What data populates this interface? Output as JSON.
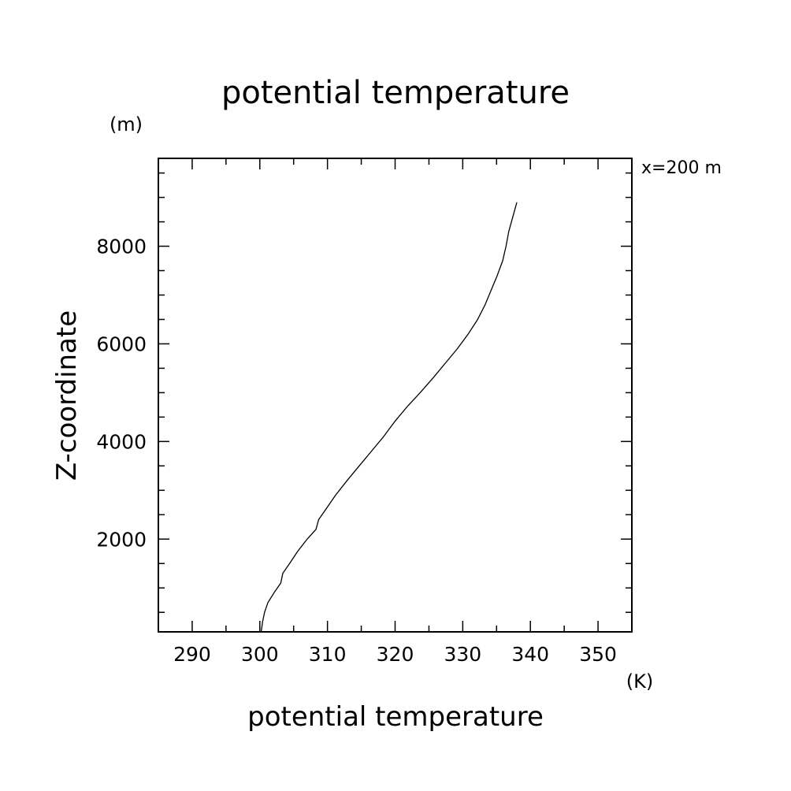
{
  "chart_data": {
    "type": "line",
    "title": "potential temperature",
    "xlabel": "potential temperature",
    "ylabel": "Z-coordinate",
    "x_unit": "(K)",
    "y_unit": "(m)",
    "annotation": "x=200 m",
    "xlim": [
      285,
      355
    ],
    "ylim": [
      100,
      9800
    ],
    "x_ticks": [
      290,
      300,
      310,
      320,
      330,
      340,
      350
    ],
    "x_tick_labels": [
      "290",
      "300",
      "310",
      "320",
      "330",
      "340",
      "350"
    ],
    "x_minor_step": 5,
    "y_ticks": [
      2000,
      4000,
      6000,
      8000
    ],
    "y_tick_labels": [
      "2000",
      "4000",
      "6000",
      "8000"
    ],
    "y_minor_step": 500,
    "grid": false,
    "legend": "none",
    "line_color": "#000000",
    "series": [
      {
        "x": [
          300.2,
          300.4,
          300.7,
          301.2,
          302.1,
          303.1,
          303.4,
          304.4,
          305.6,
          307.0,
          308.3,
          308.7,
          309.7,
          311.2,
          312.9,
          314.7,
          316.5,
          318.3,
          319.9,
          321.7,
          323.7,
          325.6,
          327.4,
          329.2,
          330.8,
          332.2,
          333.3,
          334.2,
          335.1,
          335.9,
          336.4,
          336.8,
          337.4,
          338.0
        ],
        "y": [
          100,
          300,
          500,
          700,
          900,
          1100,
          1300,
          1500,
          1750,
          2000,
          2200,
          2400,
          2600,
          2900,
          3200,
          3500,
          3800,
          4100,
          4400,
          4700,
          5000,
          5300,
          5600,
          5900,
          6200,
          6500,
          6800,
          7100,
          7400,
          7700,
          8000,
          8300,
          8600,
          8900
        ]
      }
    ]
  }
}
